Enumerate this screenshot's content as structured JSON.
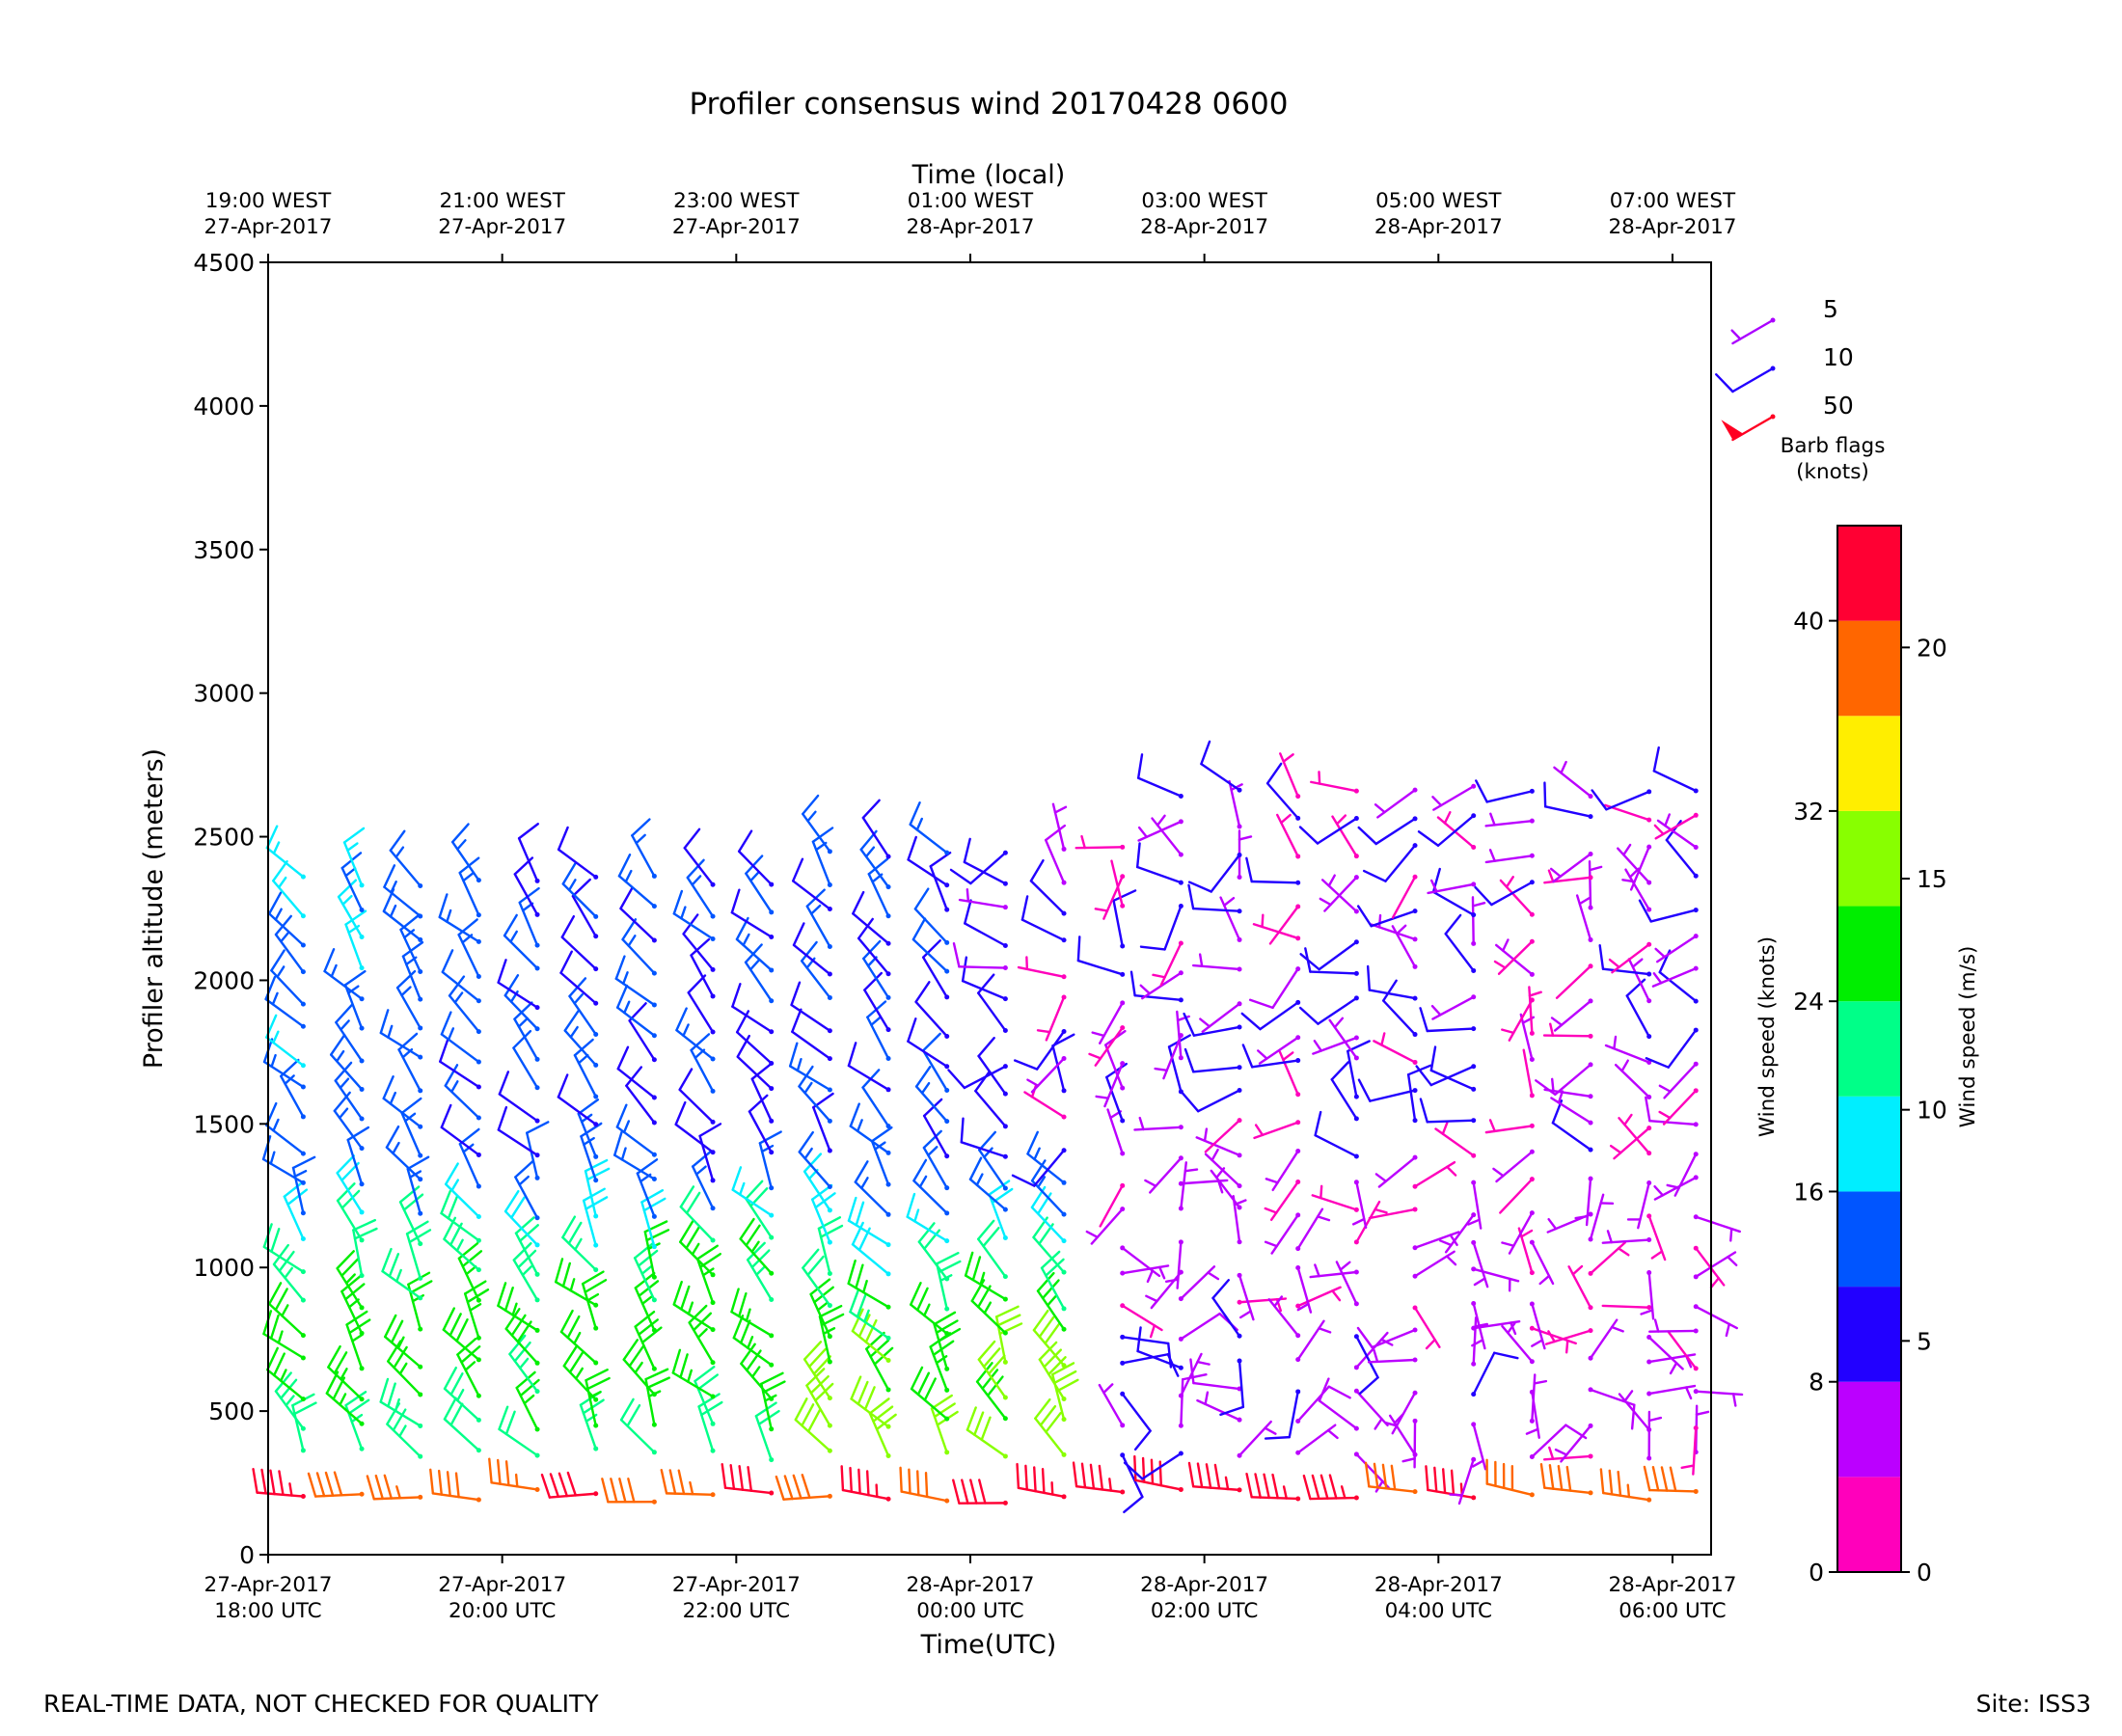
{
  "title": "Profiler consensus wind 20170428 0600",
  "top_axis_title": "Time (local)",
  "bottom_axis_title": "Time(UTC)",
  "y_axis_title": "Profiler altitude (meters)",
  "footer_left": "REAL-TIME DATA, NOT CHECKED FOR QUALITY",
  "footer_right": "Site: ISS3",
  "legend": {
    "caption_line1": "Barb flags",
    "caption_line2": "(knots)",
    "items": [
      {
        "label": "5",
        "color": "#aa00ff"
      },
      {
        "label": "10",
        "color": "#2200ff"
      },
      {
        "label": "50",
        "color": "#ff0022"
      }
    ]
  },
  "colorbar": {
    "left_label": "Wind speed (knots)",
    "right_label": "Wind speed (m/s)",
    "knots_ticks": [
      "0",
      "8",
      "16",
      "24",
      "32",
      "40"
    ],
    "ms_ticks": [
      "0",
      "5",
      "10",
      "15",
      "20"
    ],
    "colors": [
      "#ff00bb",
      "#bb00ff",
      "#2200ff",
      "#0055ff",
      "#00eeff",
      "#00ff88",
      "#00ee00",
      "#88ff00",
      "#ffee00",
      "#ff6600",
      "#ff0033"
    ],
    "bounds_knots": [
      0,
      4,
      8,
      12,
      16,
      20,
      24,
      28,
      32,
      36,
      40,
      44
    ]
  },
  "chart_data": {
    "type": "wind-barb",
    "title": "Profiler consensus wind 20170428 0600",
    "xlabel": "Time(UTC)",
    "ylabel": "Profiler altitude (meters)",
    "ylim": [
      0,
      4500
    ],
    "yticks": [
      "0",
      "500",
      "1000",
      "1500",
      "2000",
      "2500",
      "3000",
      "3500",
      "4000",
      "4500"
    ],
    "bottom_ticks": [
      {
        "line1": "27-Apr-2017",
        "line2": "18:00 UTC"
      },
      {
        "line1": "27-Apr-2017",
        "line2": "20:00 UTC"
      },
      {
        "line1": "27-Apr-2017",
        "line2": "22:00 UTC"
      },
      {
        "line1": "28-Apr-2017",
        "line2": "00:00 UTC"
      },
      {
        "line1": "28-Apr-2017",
        "line2": "02:00 UTC"
      },
      {
        "line1": "28-Apr-2017",
        "line2": "04:00 UTC"
      },
      {
        "line1": "28-Apr-2017",
        "line2": "06:00 UTC"
      }
    ],
    "top_ticks": [
      {
        "line1": "19:00 WEST",
        "line2": "27-Apr-2017"
      },
      {
        "line1": "21:00 WEST",
        "line2": "27-Apr-2017"
      },
      {
        "line1": "23:00 WEST",
        "line2": "27-Apr-2017"
      },
      {
        "line1": "01:00 WEST",
        "line2": "28-Apr-2017"
      },
      {
        "line1": "03:00 WEST",
        "line2": "28-Apr-2017"
      },
      {
        "line1": "05:00 WEST",
        "line2": "28-Apr-2017"
      },
      {
        "line1": "07:00 WEST",
        "line2": "28-Apr-2017"
      }
    ],
    "xlim_hours_utc": [
      18,
      30.33
    ],
    "time_hours_utc": [
      18.3,
      18.8,
      19.3,
      19.8,
      20.3,
      20.8,
      21.3,
      21.8,
      22.3,
      22.8,
      23.3,
      23.8,
      24.3,
      24.8,
      25.3,
      25.8,
      26.3,
      26.8,
      27.3,
      27.8,
      28.3,
      28.8,
      29.3,
      29.8,
      30.2
    ],
    "layers": [
      {
        "alt_min": 150,
        "alt_max": 250,
        "profile": "low",
        "speed_range_knots": [
          36,
          44
        ]
      },
      {
        "alt_min": 300,
        "alt_max": 1300,
        "profile": "mid",
        "speed_range_knots": [
          2,
          34
        ]
      },
      {
        "alt_min": 1350,
        "alt_max": 2650,
        "profile": "upper",
        "speed_range_knots": [
          2,
          20
        ]
      }
    ]
  }
}
